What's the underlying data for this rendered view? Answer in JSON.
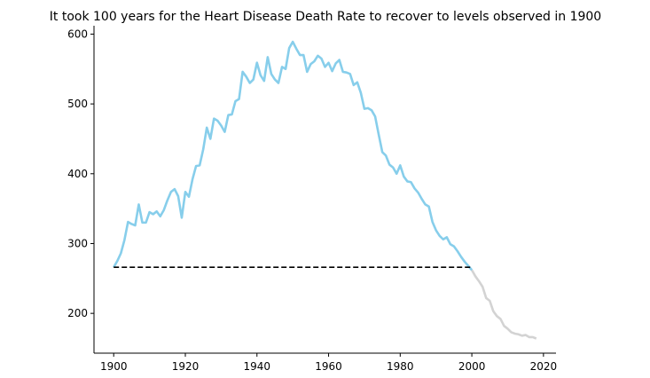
{
  "chart_data": {
    "type": "line",
    "title": "It took 100 years for the Heart Disease Death Rate to recover to levels observed in 1900",
    "xlabel": "",
    "ylabel": "",
    "xlim": [
      1894.5,
      2023.5
    ],
    "ylim": [
      143,
      612
    ],
    "x_ticks": [
      1900,
      1920,
      1940,
      1960,
      1980,
      2000,
      2020
    ],
    "y_ticks": [
      200,
      300,
      400,
      500,
      600
    ],
    "grid": false,
    "colors": {
      "highlight": "#87CEEB",
      "remainder": "#D3D3D3",
      "reference": "#000000"
    },
    "series": [
      {
        "x": [
          1900,
          1901,
          1902,
          1903,
          1904,
          1905,
          1906,
          1907,
          1908,
          1909,
          1910,
          1911,
          1912,
          1913,
          1914,
          1915,
          1916,
          1917,
          1918,
          1919,
          1920,
          1921,
          1922,
          1923,
          1924,
          1925,
          1926,
          1927,
          1928,
          1929,
          1930,
          1931,
          1932,
          1933,
          1934,
          1935,
          1936,
          1937,
          1938,
          1939,
          1940,
          1941,
          1942,
          1943,
          1944,
          1945,
          1946,
          1947,
          1948,
          1949,
          1950,
          1951,
          1952,
          1953,
          1954,
          1955,
          1956,
          1957,
          1958,
          1959,
          1960,
          1961,
          1962,
          1963,
          1964,
          1965,
          1966,
          1967,
          1968,
          1969,
          1970,
          1971,
          1972,
          1973,
          1974,
          1975,
          1976,
          1977,
          1978,
          1979,
          1980,
          1981,
          1982,
          1983,
          1984,
          1985,
          1986,
          1987,
          1988,
          1989,
          1990,
          1991,
          1992,
          1993,
          1994,
          1995,
          1996,
          1997,
          1998,
          1999,
          2000
        ],
        "values": [
          266,
          275,
          286,
          305,
          331,
          328,
          326,
          356,
          330,
          330,
          345,
          342,
          346,
          339,
          348,
          362,
          374,
          378,
          368,
          337,
          374,
          367,
          392,
          411,
          412,
          435,
          466,
          450,
          479,
          476,
          469,
          460,
          484,
          485,
          504,
          507,
          546,
          539,
          530,
          535,
          559,
          541,
          533,
          567,
          543,
          535,
          530,
          553,
          550,
          580,
          589,
          579,
          570,
          570,
          546,
          557,
          561,
          569,
          565,
          553,
          559,
          547,
          558,
          563,
          546,
          545,
          543,
          527,
          531,
          516,
          493,
          494,
          491,
          482,
          456,
          431,
          426,
          413,
          409,
          400,
          412,
          396,
          389,
          388,
          379,
          373,
          364,
          356,
          353,
          331,
          319,
          311,
          306,
          309,
          299,
          296,
          289,
          281,
          274,
          268,
          262
        ]
      },
      {
        "x": [
          2000,
          2001,
          2002,
          2003,
          2004,
          2005,
          2006,
          2007,
          2008,
          2009,
          2010,
          2011,
          2012,
          2013,
          2014,
          2015,
          2016,
          2017,
          2018
        ],
        "values": [
          262,
          253,
          246,
          238,
          222,
          218,
          203,
          196,
          192,
          182,
          178,
          173,
          171,
          170,
          168,
          169,
          166,
          166,
          164
        ]
      },
      {
        "x": [
          1900,
          2000
        ],
        "values": [
          266,
          266
        ]
      }
    ]
  }
}
